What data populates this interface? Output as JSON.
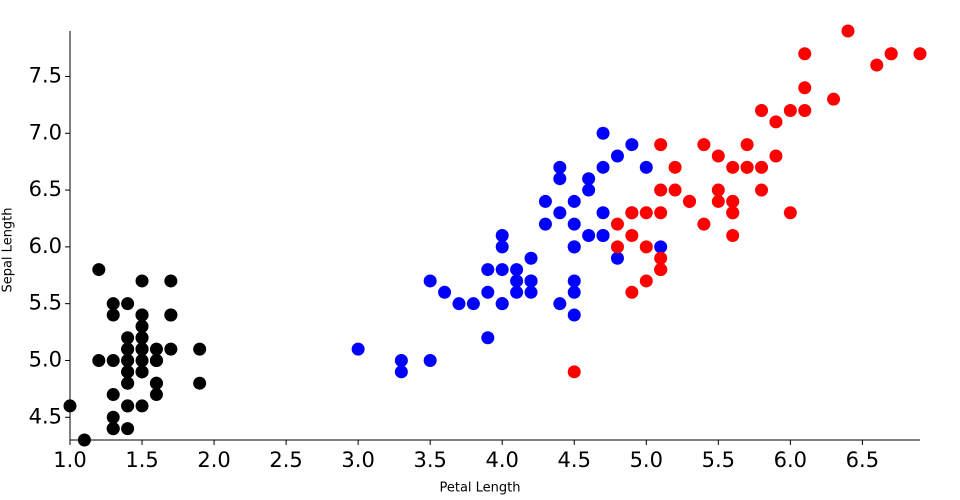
{
  "chart_data": {
    "type": "scatter",
    "x_label": "Petal Length",
    "y_label": "Sepal Length",
    "xlim": [
      1,
      6.9
    ],
    "ylim": [
      4.3,
      7.9
    ],
    "xticks": [
      {
        "value": 1,
        "label": "1.0"
      },
      1.5,
      {
        "value": 2,
        "label": "2.0"
      },
      2.5,
      {
        "value": 3,
        "label": "3.0"
      },
      3.5,
      {
        "value": 4,
        "label": "4.0"
      },
      4.5,
      {
        "value": 5,
        "label": "5.0"
      },
      5.5,
      {
        "value": 6,
        "label": "6.0"
      },
      6.5
    ],
    "yticks": [
      4.5,
      {
        "value": 5,
        "label": "5.0"
      },
      5.5,
      {
        "value": 6,
        "label": "6.0"
      },
      6.5,
      {
        "value": 7,
        "label": "7.0"
      },
      7.5
    ],
    "series": [
      {
        "color": "#000000",
        "x": [
          1.4,
          1.4,
          1.3,
          1.5,
          1.4,
          1.7,
          1.4,
          1.5,
          1.4,
          1.5,
          1.5,
          1.6,
          1.4,
          1.1,
          1.2,
          1.5,
          1.3,
          1.4,
          1.7,
          1.5,
          1.7,
          1.5,
          1.0,
          1.7,
          1.9,
          1.6,
          1.6,
          1.5,
          1.4,
          1.6,
          1.6,
          1.5,
          1.5,
          1.4,
          1.5,
          1.2,
          1.3,
          1.4,
          1.3,
          1.5,
          1.3,
          1.3,
          1.3,
          1.6,
          1.9,
          1.4,
          1.6,
          1.4,
          1.5,
          1.4
        ],
        "values": [
          5.1,
          4.9,
          4.7,
          4.6,
          5.0,
          5.4,
          4.6,
          5.0,
          4.4,
          4.9,
          5.4,
          4.8,
          4.8,
          4.3,
          5.8,
          5.7,
          5.4,
          5.1,
          5.7,
          5.1,
          5.4,
          5.1,
          4.6,
          5.1,
          4.8,
          5.0,
          5.0,
          5.2,
          5.2,
          4.7,
          4.8,
          5.4,
          5.2,
          5.5,
          4.9,
          5.0,
          5.5,
          4.9,
          4.4,
          5.1,
          5.0,
          4.5,
          4.4,
          5.0,
          5.1,
          4.8,
          5.1,
          4.6,
          5.3,
          5.0
        ]
      },
      {
        "color": "#0000ff",
        "x": [
          4.7,
          4.5,
          4.9,
          4.0,
          4.6,
          4.5,
          4.7,
          3.3,
          4.6,
          3.9,
          3.5,
          4.2,
          4.0,
          4.7,
          3.6,
          4.4,
          4.5,
          4.1,
          4.5,
          3.9,
          4.8,
          4.0,
          4.9,
          4.7,
          4.3,
          4.4,
          4.8,
          5.0,
          4.5,
          3.5,
          3.8,
          3.7,
          3.9,
          5.1,
          4.5,
          4.5,
          4.7,
          4.4,
          4.1,
          4.0,
          4.4,
          4.6,
          4.0,
          3.3,
          4.2,
          4.2,
          4.2,
          4.3,
          3.0,
          4.1
        ],
        "values": [
          7.0,
          6.4,
          6.9,
          5.5,
          6.5,
          5.7,
          6.3,
          4.9,
          6.6,
          5.2,
          5.0,
          5.9,
          6.0,
          6.1,
          5.6,
          6.7,
          5.6,
          5.8,
          6.2,
          5.6,
          5.9,
          6.1,
          6.3,
          6.1,
          6.4,
          6.6,
          6.8,
          6.7,
          6.0,
          5.7,
          5.5,
          5.5,
          5.8,
          6.0,
          5.4,
          6.0,
          6.7,
          6.3,
          5.6,
          5.5,
          5.5,
          6.1,
          5.8,
          5.0,
          5.6,
          5.7,
          5.7,
          6.2,
          5.1,
          5.7
        ]
      },
      {
        "color": "#ff0000",
        "x": [
          6.0,
          5.1,
          5.9,
          5.6,
          5.8,
          6.6,
          4.5,
          6.3,
          5.8,
          6.1,
          5.1,
          5.3,
          5.5,
          5.0,
          5.1,
          5.3,
          5.5,
          6.7,
          6.9,
          5.0,
          5.7,
          4.9,
          6.7,
          4.9,
          5.7,
          6.0,
          4.8,
          4.9,
          5.6,
          5.8,
          6.1,
          6.4,
          5.6,
          5.1,
          5.6,
          6.1,
          5.6,
          5.5,
          4.8,
          5.4,
          5.6,
          5.1,
          5.1,
          5.9,
          5.7,
          5.2,
          5.0,
          5.2,
          5.4,
          5.1
        ],
        "values": [
          6.3,
          5.8,
          7.1,
          6.3,
          6.5,
          7.6,
          4.9,
          7.3,
          6.7,
          7.2,
          6.5,
          6.4,
          6.8,
          5.7,
          5.8,
          6.4,
          6.5,
          7.7,
          7.7,
          6.0,
          6.9,
          5.6,
          7.7,
          6.3,
          6.7,
          7.2,
          6.2,
          6.1,
          6.4,
          7.2,
          7.4,
          7.9,
          6.4,
          6.3,
          6.1,
          7.7,
          6.3,
          6.4,
          6.0,
          6.9,
          6.7,
          6.9,
          5.8,
          6.8,
          6.7,
          6.7,
          6.3,
          6.5,
          6.2,
          5.9
        ]
      }
    ]
  }
}
